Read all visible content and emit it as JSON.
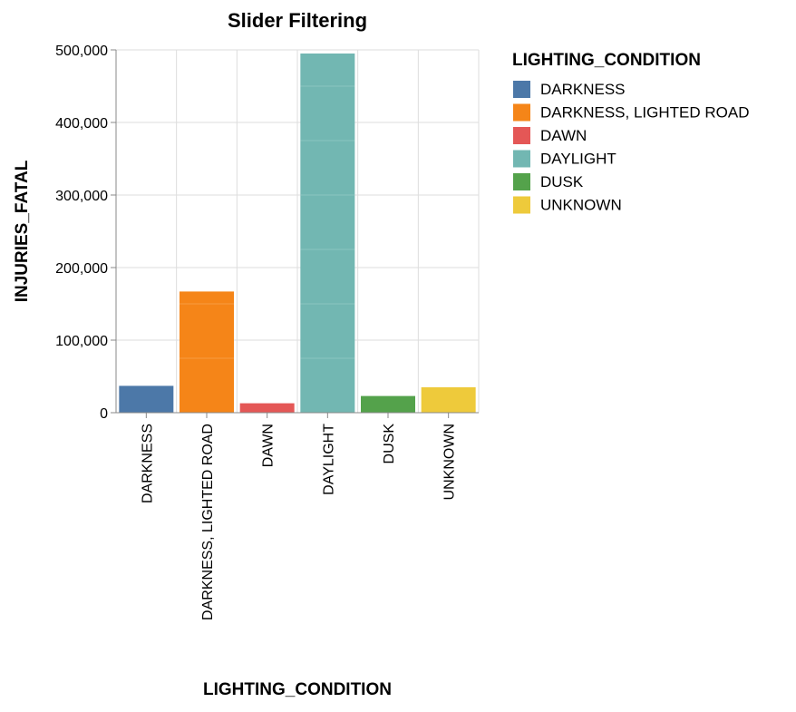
{
  "chart_data": {
    "type": "bar",
    "title": "Slider Filtering",
    "xlabel": "LIGHTING_CONDITION",
    "ylabel": "INJURIES_FATAL",
    "categories": [
      "DARKNESS",
      "DARKNESS, LIGHTED ROAD",
      "DAWN",
      "DAYLIGHT",
      "DUSK",
      "UNKNOWN"
    ],
    "values": [
      37000,
      167000,
      13000,
      495000,
      23000,
      35000
    ],
    "ylim": [
      0,
      500000
    ],
    "yticks": [
      0,
      100000,
      200000,
      300000,
      400000,
      500000
    ],
    "ytick_labels": [
      "0",
      "100,000",
      "200,000",
      "300,000",
      "400,000",
      "500,000"
    ],
    "grid": true,
    "legend": {
      "title": "LIGHTING_CONDITION",
      "placement": "right",
      "entries": [
        "DARKNESS",
        "DARKNESS, LIGHTED ROAD",
        "DAWN",
        "DAYLIGHT",
        "DUSK",
        "UNKNOWN"
      ]
    },
    "colors": {
      "DARKNESS": "#4c78a8",
      "DARKNESS, LIGHTED ROAD": "#f58518",
      "DAWN": "#e45756",
      "DAYLIGHT": "#72b7b2",
      "DUSK": "#54a24b",
      "UNKNOWN": "#eeca3b"
    }
  }
}
